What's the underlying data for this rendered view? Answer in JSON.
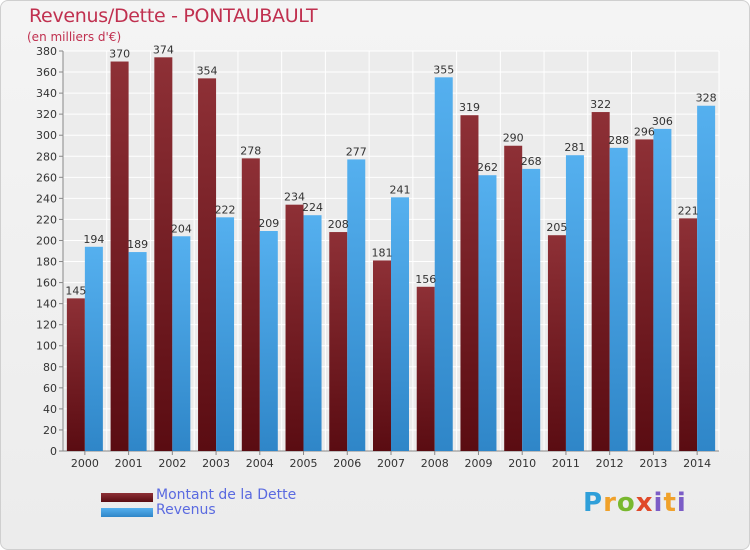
{
  "chart_data": {
    "type": "bar",
    "title": "Revenus/Dette - PONTAUBAULT",
    "subtitle": "(en milliers d'€)",
    "categories": [
      "2000",
      "2001",
      "2002",
      "2003",
      "2004",
      "2005",
      "2006",
      "2007",
      "2008",
      "2009",
      "2010",
      "2011",
      "2012",
      "2013",
      "2014"
    ],
    "series": [
      {
        "name": "Montant de la Dette",
        "values": [
          145,
          370,
          374,
          354,
          278,
          234,
          208,
          181,
          156,
          319,
          290,
          205,
          322,
          296,
          221
        ],
        "labels": [
          "145",
          "370",
          "374",
          "354",
          "278",
          "234",
          "208",
          "181",
          "156",
          "319",
          "290",
          "205",
          "322",
          "296",
          "221"
        ],
        "color": "#7a1f24"
      },
      {
        "name": "Revenus",
        "values": [
          194,
          189,
          204,
          222,
          209,
          224,
          277,
          241,
          355,
          262,
          268,
          281,
          288,
          306,
          328
        ],
        "labels": [
          "194",
          "189",
          "204",
          "222",
          "209",
          "224",
          "277",
          "241",
          "355",
          "262",
          "268",
          "281",
          "288",
          "306",
          "328"
        ],
        "color": "#4aa3e6"
      }
    ],
    "ylim": [
      0,
      380
    ],
    "yticks": [
      0,
      20,
      40,
      60,
      80,
      100,
      120,
      140,
      160,
      180,
      200,
      220,
      240,
      260,
      280,
      300,
      320,
      340,
      360,
      380
    ],
    "ytick_labels": [
      "0",
      "20",
      "40",
      "60",
      "80",
      "100",
      "120",
      "140",
      "160",
      "180",
      "200",
      "220",
      "240",
      "260",
      "280",
      "300",
      "320",
      "340",
      "360",
      "380"
    ],
    "grid": true,
    "legend_position": "bottom-left"
  },
  "legend": [
    {
      "label": "Montant de la Dette",
      "color": "#7a1f24"
    },
    {
      "label": "Revenus",
      "color": "#4aa3e6"
    }
  ],
  "logo": {
    "text": "Proxiti"
  }
}
